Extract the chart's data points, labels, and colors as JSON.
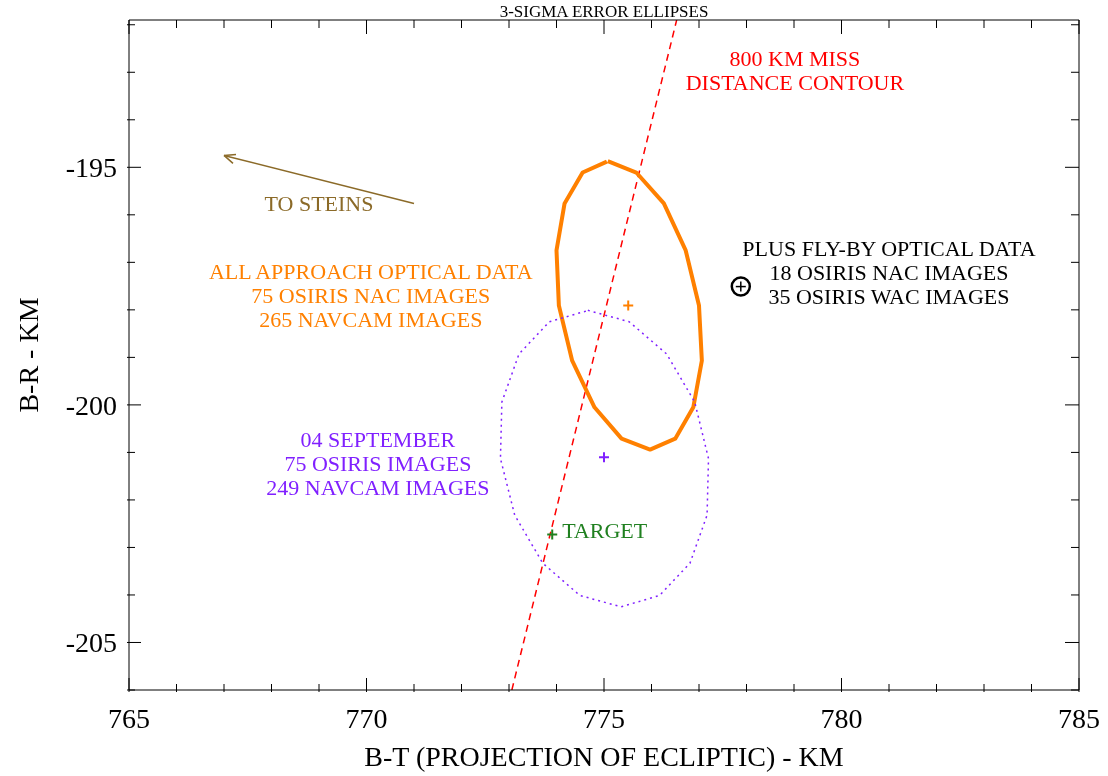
{
  "chart_data": {
    "type": "scatter",
    "title": "3-SIGMA ERROR ELLIPSES",
    "xlabel": "B-T (PROJECTION OF ECLIPTIC) - KM",
    "ylabel": "B-R - KM",
    "xlim": [
      765,
      785
    ],
    "ylim": [
      -206,
      -191.9
    ],
    "xticks": [
      765,
      {
        "value": 766,
        "label": null
      },
      {
        "value": 767,
        "label": null
      },
      {
        "value": 768,
        "label": null
      },
      {
        "value": 769,
        "label": null
      },
      770,
      {
        "value": 771,
        "label": null
      },
      {
        "value": 772,
        "label": null
      },
      {
        "value": 773,
        "label": null
      },
      {
        "value": 774,
        "label": null
      },
      775,
      {
        "value": 776,
        "label": null
      },
      {
        "value": 777,
        "label": null
      },
      {
        "value": 778,
        "label": null
      },
      {
        "value": 779,
        "label": null
      },
      780,
      {
        "value": 781,
        "label": null
      },
      {
        "value": 782,
        "label": null
      },
      {
        "value": 783,
        "label": null
      },
      {
        "value": 784,
        "label": null
      },
      785
    ],
    "yticks": [
      {
        "value": -206,
        "label": null
      },
      -205,
      {
        "value": -204,
        "label": null
      },
      {
        "value": -203,
        "label": null
      },
      {
        "value": -202,
        "label": null
      },
      {
        "value": -201,
        "label": null
      },
      -200,
      {
        "value": -199,
        "label": null
      },
      {
        "value": -198,
        "label": null
      },
      {
        "value": -197,
        "label": null
      },
      {
        "value": -196,
        "label": null
      },
      -195,
      {
        "value": -194,
        "label": null
      },
      {
        "value": -193,
        "label": null
      },
      {
        "value": -192,
        "label": null
      }
    ],
    "grid": false,
    "legend": "right",
    "annotations": [
      "TO STEINS"
    ],
    "series": [
      {
        "type": "scatter",
        "color": "#ff8000",
        "marker": "cross",
        "x": [
          775.51
        ],
        "values": [
          -197.91
        ]
      },
      {
        "type": "scatter",
        "color": "#8020ff",
        "marker": "cross",
        "x": [
          775.0
        ],
        "values": [
          -201.1
        ]
      },
      {
        "type": "scatter",
        "name": "TARGET",
        "color": "#208020",
        "marker": "cross",
        "x": [
          773.91
        ],
        "values": [
          -202.73
        ]
      },
      {
        "type": "scatter",
        "name": "PLUS FLY-BY OPTICAL DATA\n18 OSIRIS NAC IMAGES\n35 OSIRIS WAC IMAGES",
        "color": "#000000",
        "marker": "circle",
        "x": [
          777.88
        ],
        "values": [
          -197.51
        ]
      },
      {
        "type": "line",
        "name": "800 KM MISS\nDISTANCE CONTOUR",
        "color": "#ff0000",
        "line_style": "dashed",
        "marker": "none",
        "x": [
          773.06,
          776.53
        ],
        "values": [
          -206,
          -191.9
        ]
      },
      {
        "type": "line",
        "name": "ALL APPROACH OPTICAL DATA\n75 OSIRIS NAC IMAGES\n265 NAVCAM IMAGES",
        "color": "#ff8000",
        "line_style": "solid",
        "marker": "none",
        "x": [
          775.08,
          775.68,
          776.26,
          776.72,
          777.0,
          777.06,
          776.88,
          776.5,
          775.97,
          775.37,
          774.8,
          774.33,
          774.05,
          774.0,
          774.17,
          774.55,
          775.06
        ],
        "values": [
          -194.87,
          -195.11,
          -195.76,
          -196.75,
          -197.91,
          -199.07,
          -200.05,
          -200.71,
          -200.94,
          -200.71,
          -200.05,
          -199.07,
          -197.91,
          -196.75,
          -195.76,
          -195.11,
          -194.88
        ]
      },
      {
        "type": "line",
        "name": "04 SEPTEMBER\n75 OSIRIS IMAGES\n249 NAVCAM IMAGES",
        "color": "#8020ff",
        "line_style": "dotted",
        "marker": "none",
        "x": [
          774.66,
          775.53,
          776.32,
          776.91,
          777.2,
          777.17,
          776.81,
          776.17,
          775.36,
          774.49,
          773.71,
          773.12,
          772.82,
          772.85,
          773.21,
          773.85,
          774.64
        ],
        "values": [
          -198.01,
          -198.25,
          -198.93,
          -199.94,
          -201.13,
          -202.32,
          -203.33,
          -204.01,
          -204.25,
          -204.01,
          -203.33,
          -202.32,
          -201.13,
          -199.94,
          -198.93,
          -198.25,
          -198.02
        ]
      }
    ]
  }
}
